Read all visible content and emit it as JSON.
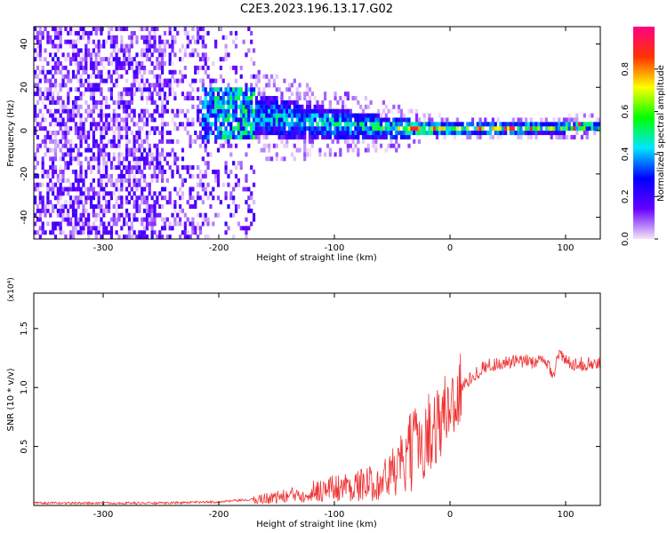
{
  "figure_title": "C2E3.2023.196.13.17.G02",
  "chart_data": [
    {
      "type": "heatmap",
      "title": "",
      "xlabel": "Height of straight line (km)",
      "ylabel": "Frequency (Hz)",
      "xlim": [
        -360,
        130
      ],
      "ylim": [
        -50,
        48
      ],
      "xticks": [
        -300,
        -200,
        -100,
        0,
        100
      ],
      "yticks": [
        -40,
        -20,
        0,
        20,
        40
      ],
      "grid": false,
      "colorbar": {
        "label": "Normalized spectral amplitude",
        "range": [
          0,
          1
        ],
        "ticks": [
          0.0,
          0.2,
          0.4,
          0.6,
          0.8
        ],
        "colors": [
          "#f4e6f8",
          "#6600ff",
          "#0000ff",
          "#00e6ff",
          "#00ff00",
          "#ffff00",
          "#ff3300",
          "#ff0088"
        ]
      },
      "bands": [
        {
          "x": -360,
          "center": 0,
          "halfwidth": 48,
          "amplitude": 0.15
        },
        {
          "x": -250,
          "center": 0,
          "halfwidth": 48,
          "amplitude": 0.13
        },
        {
          "x": -205,
          "center": 8,
          "halfwidth": 10,
          "amplitude": 0.35
        },
        {
          "x": -150,
          "center": 5,
          "halfwidth": 9,
          "amplitude": 0.45
        },
        {
          "x": -100,
          "center": 2,
          "halfwidth": 7,
          "amplitude": 0.45
        },
        {
          "x": -50,
          "center": 0,
          "halfwidth": 5,
          "amplitude": 0.55
        },
        {
          "x": -20,
          "center": 0,
          "halfwidth": 3,
          "amplitude": 0.7
        },
        {
          "x": 0,
          "center": 0,
          "halfwidth": 2.5,
          "amplitude": 0.65
        },
        {
          "x": 50,
          "center": 0,
          "halfwidth": 2.5,
          "amplitude": 0.6
        },
        {
          "x": 100,
          "center": 0.5,
          "halfwidth": 2.5,
          "amplitude": 0.6
        },
        {
          "x": 130,
          "center": 1,
          "halfwidth": 2.5,
          "amplitude": 0.6
        }
      ]
    },
    {
      "type": "line",
      "title": "",
      "xlabel": "Height of straight line (km)",
      "ylabel": "SNR (10 * v/v)",
      "y_multiplier": "(x10⁴)",
      "xlim": [
        -360,
        130
      ],
      "ylim": [
        0,
        1.8
      ],
      "xticks": [
        -300,
        -200,
        -100,
        0,
        100
      ],
      "yticks": [
        0.5,
        1.0,
        1.5
      ],
      "grid": false,
      "color": "#ee3333",
      "series": [
        {
          "x": [
            -360,
            -300,
            -250,
            -200,
            -170,
            -140,
            -120,
            -100,
            -80,
            -60,
            -40,
            -30,
            -20,
            -10,
            0,
            10,
            20,
            30,
            40,
            60,
            80,
            85,
            90,
            93,
            100,
            110,
            120,
            130
          ],
          "y": [
            0.02,
            0.02,
            0.02,
            0.03,
            0.05,
            0.08,
            0.12,
            0.15,
            0.17,
            0.2,
            0.35,
            0.5,
            0.6,
            0.7,
            0.85,
            1.0,
            1.1,
            1.18,
            1.2,
            1.22,
            1.22,
            1.2,
            1.1,
            1.3,
            1.22,
            1.2,
            1.2,
            1.2
          ]
        }
      ]
    }
  ]
}
